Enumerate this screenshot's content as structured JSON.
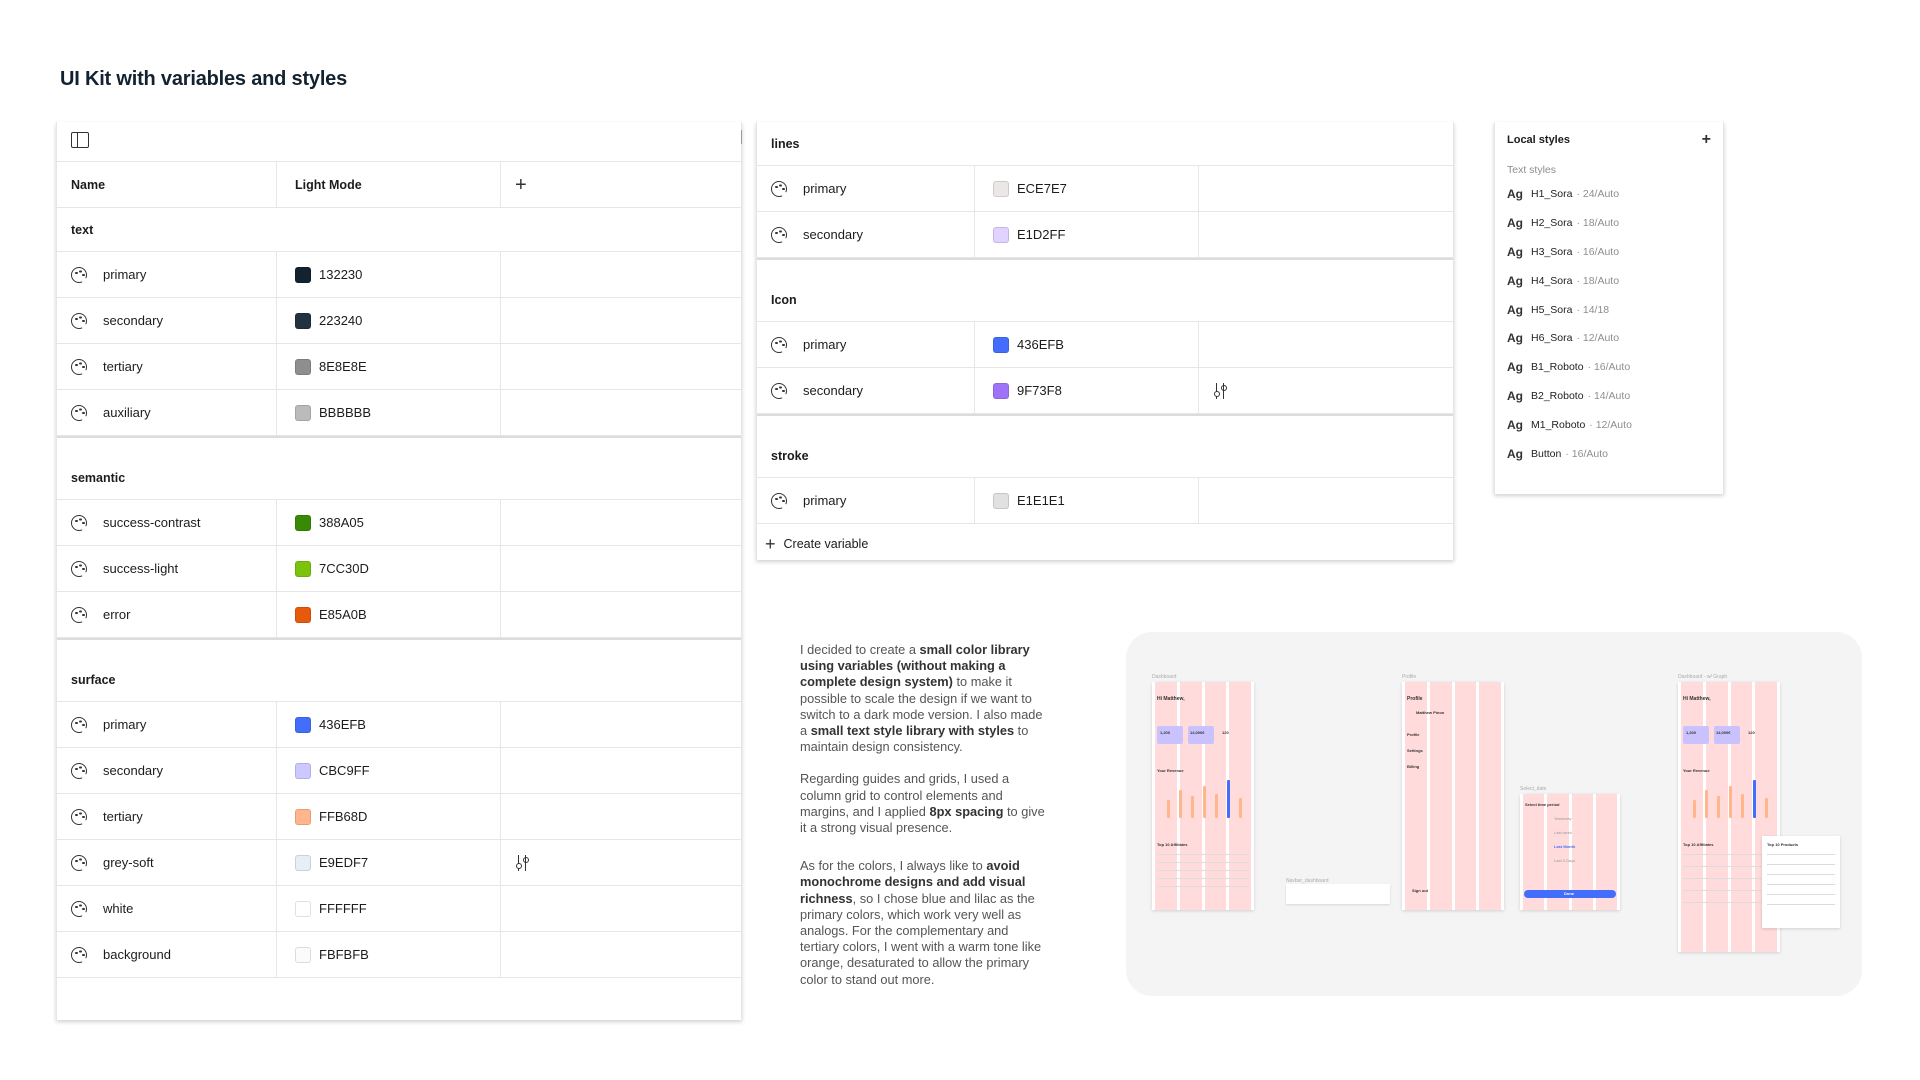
{
  "page_title": "UI Kit with variables and styles",
  "variables_table": {
    "header": {
      "name": "Name",
      "mode": "Light Mode",
      "add": "+"
    },
    "groups": [
      {
        "label": "text",
        "rows": [
          {
            "name": "primary",
            "value": "132230",
            "color": "#132230"
          },
          {
            "name": "secondary",
            "value": "223240",
            "color": "#223240"
          },
          {
            "name": "tertiary",
            "value": "8E8E8E",
            "color": "#8E8E8E"
          },
          {
            "name": "auxiliary",
            "value": "BBBBBB",
            "color": "#BBBBBB"
          }
        ]
      },
      {
        "label": "semantic",
        "rows": [
          {
            "name": "success-contrast",
            "value": "388A05",
            "color": "#388A05"
          },
          {
            "name": "success-light",
            "value": "7CC30D",
            "color": "#7CC30D"
          },
          {
            "name": "error",
            "value": "E85A0B",
            "color": "#E85A0B"
          }
        ]
      },
      {
        "label": "surface",
        "rows": [
          {
            "name": "primary",
            "value": "436EFB",
            "color": "#436EFB"
          },
          {
            "name": "secondary",
            "value": "CBC9FF",
            "color": "#CBC9FF"
          },
          {
            "name": "tertiary",
            "value": "FFB68D",
            "color": "#FFB68D"
          },
          {
            "name": "grey-soft",
            "value": "E9EDF7",
            "color": "#E9EDF7"
          },
          {
            "name": "white",
            "value": "FFFFFF",
            "color": "#FFFFFF"
          },
          {
            "name": "background",
            "value": "FBFBFB",
            "color": "#FBFBFB"
          }
        ]
      },
      {
        "label": "lines",
        "rows": [
          {
            "name": "primary",
            "value": "ECE7E7",
            "color": "#ECE7E7"
          },
          {
            "name": "secondary",
            "value": "E1D2FF",
            "color": "#E1D2FF"
          }
        ]
      },
      {
        "label": "Icon",
        "rows": [
          {
            "name": "primary",
            "value": "436EFB",
            "color": "#436EFB"
          },
          {
            "name": "secondary",
            "value": "9F73F8",
            "color": "#9F73F8"
          }
        ]
      },
      {
        "label": "stroke",
        "rows": [
          {
            "name": "primary",
            "value": "E1E1E1",
            "color": "#E1E1E1"
          }
        ]
      }
    ],
    "create_variable": "Create variable"
  },
  "local_styles": {
    "title": "Local styles",
    "add": "+",
    "subtitle": "Text styles",
    "ag": "Ag",
    "items": [
      {
        "name": "H1_Sora",
        "desc": "· 24/Auto"
      },
      {
        "name": "H2_Sora",
        "desc": "· 18/Auto"
      },
      {
        "name": "H3_Sora",
        "desc": "· 16/Auto"
      },
      {
        "name": "H4_Sora",
        "desc": "· 18/Auto"
      },
      {
        "name": "H5_Sora",
        "desc": "· 14/18"
      },
      {
        "name": "H6_Sora",
        "desc": "· 12/Auto"
      },
      {
        "name": "B1_Roboto",
        "desc": "· 16/Auto"
      },
      {
        "name": "B2_Roboto",
        "desc": "· 14/Auto"
      },
      {
        "name": "M1_Roboto",
        "desc": "· 12/Auto"
      },
      {
        "name": "Button",
        "desc": "· 16/Auto"
      }
    ]
  },
  "description": {
    "p1": [
      {
        "t": "I decided to create a "
      },
      {
        "t": "small color library using variables (without making a complete design system)",
        "b": true
      },
      {
        "t": " to make it possible to scale the design if we want to switch to a dark mode version. I also made a "
      },
      {
        "t": "small text style library with styles",
        "b": true
      },
      {
        "t": " to maintain design consistency."
      }
    ],
    "p2": [
      {
        "t": "Regarding guides and grids, I used a column grid to control elements and margins, and I applied "
      },
      {
        "t": "8px spacing",
        "b": true
      },
      {
        "t": " to give it a strong visual presence."
      }
    ],
    "p3": [
      {
        "t": "As for the colors, I always like to "
      },
      {
        "t": "avoid monochrome designs and add visual richness",
        "b": true
      },
      {
        "t": ", so I chose blue and lilac as the primary colors, which work very well as analogs. For the complementary and tertiary colors, I went with a warm tone like orange, desaturated to allow the primary color to stand out more."
      }
    ]
  },
  "preview": {
    "labels": [
      "Dashboard",
      "Profile",
      "Select_date",
      "Navbar_dashboard",
      "Dashboard - w/ Graph"
    ],
    "dashboard_greeting": "Hi Matthew,",
    "profile_title": "Profile",
    "profile_name": "Matthew Pinon",
    "profile_menu": [
      "Profile",
      "Settings",
      "Billing"
    ],
    "modal_title": "Select time period",
    "modal_options": [
      "Yesterday",
      "Last week",
      "Last Month",
      "Last 3 Days"
    ],
    "modal_button": "Done",
    "sign_out": "Sign out",
    "stats": [
      "1,200",
      "14,000€",
      "120"
    ],
    "section_total": "Your Revenue",
    "section_affiliates": "Top 10 Affiliates",
    "section_products": "Top 10 Products",
    "bar_values": [
      0.45,
      0.7,
      0.55,
      0.8,
      0.6,
      0.95,
      0.5
    ]
  },
  "colors": {
    "accent": "#436EFB",
    "lilac": "#CBC9FF",
    "orange": "#FFB68D",
    "grid": "#ffa0a0"
  },
  "icons": {
    "variable": "palette-icon",
    "edit": "sliders-icon",
    "sidebar": "sidebar-toggle-icon"
  }
}
